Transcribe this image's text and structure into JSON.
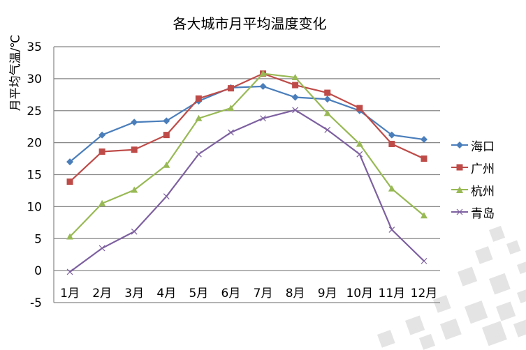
{
  "chart_data": {
    "type": "line",
    "title": "各大城市月平均温度变化",
    "xlabel": "",
    "ylabel": "月平均气温/℃",
    "categories": [
      "1月",
      "2月",
      "3月",
      "4月",
      "5月",
      "6月",
      "7月",
      "8月",
      "9月",
      "10月",
      "11月",
      "12月"
    ],
    "ylim": [
      -5,
      35
    ],
    "yticks": [
      "35",
      "30",
      "25",
      "20",
      "15",
      "10",
      "5",
      "0",
      "-5"
    ],
    "ytick_values": [
      35,
      30,
      25,
      20,
      15,
      10,
      5,
      0,
      -5
    ],
    "grid": true,
    "legend_position": "right",
    "series": [
      {
        "name": "海口",
        "color": "#4a7ebb",
        "marker": "diamond",
        "values": [
          17.0,
          21.2,
          23.2,
          23.4,
          26.5,
          28.6,
          28.8,
          27.1,
          26.8,
          25.0,
          21.2,
          20.5
        ]
      },
      {
        "name": "广州",
        "color": "#be4b48",
        "marker": "square",
        "values": [
          13.9,
          18.6,
          18.9,
          21.2,
          26.9,
          28.5,
          30.8,
          29.0,
          27.8,
          25.4,
          19.8,
          17.5
        ]
      },
      {
        "name": "杭州",
        "color": "#98b954",
        "marker": "triangle",
        "values": [
          5.3,
          10.5,
          12.6,
          16.5,
          23.8,
          25.4,
          30.8,
          30.2,
          24.6,
          19.8,
          12.8,
          8.6
        ]
      },
      {
        "name": "青岛",
        "color": "#7d60a0",
        "marker": "x",
        "values": [
          -0.2,
          3.5,
          6.1,
          11.6,
          18.2,
          21.6,
          23.8,
          25.1,
          22.0,
          18.2,
          6.4,
          1.5
        ]
      }
    ]
  }
}
